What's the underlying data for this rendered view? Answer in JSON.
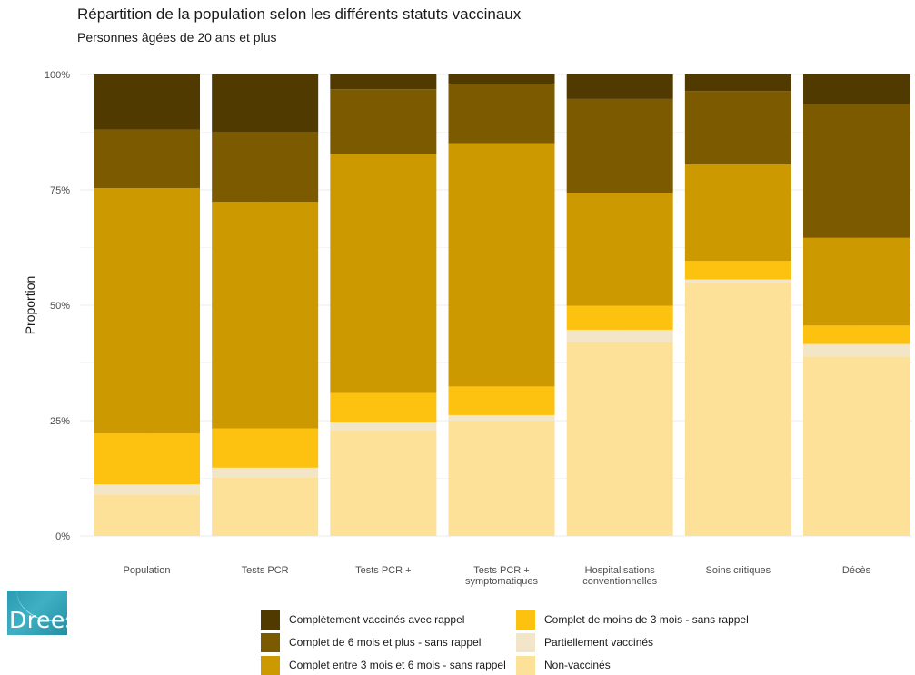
{
  "title": "Répartition de la population selon les différents statuts vaccinaux",
  "subtitle": "Personnes âgées de 20 ans et plus",
  "logo_text": "Drees",
  "colors": {
    "background": "#ffffff",
    "grid": "#ebebeb",
    "text": "#1a1a1a",
    "axis_text": "#4d4d4d",
    "logo": "#2a9bb0"
  },
  "chart_data": {
    "type": "bar",
    "stacked": true,
    "ylabel": "Proportion",
    "xlabel": "",
    "ylim": [
      0,
      1
    ],
    "y_ticks": [
      {
        "value": 0,
        "label": "0%"
      },
      {
        "value": 0.25,
        "label": "25%"
      },
      {
        "value": 0.5,
        "label": "50%"
      },
      {
        "value": 0.75,
        "label": "75%"
      },
      {
        "value": 1,
        "label": "100%"
      }
    ],
    "grid": true,
    "legend_position": "bottom",
    "categories": [
      [
        "Population"
      ],
      [
        "Tests PCR"
      ],
      [
        "Tests PCR +"
      ],
      [
        "Tests PCR +",
        "symptomatiques"
      ],
      [
        "Hospitalisations",
        "conventionnelles"
      ],
      [
        "Soins critiques"
      ],
      [
        "Décès"
      ]
    ],
    "series": [
      {
        "name": "Non-vaccinés",
        "color": "#fde199",
        "values": [
          0.09,
          0.126,
          0.23,
          0.25,
          0.42,
          0.548,
          0.389
        ]
      },
      {
        "name": "Partiellement vaccinés",
        "color": "#f2e5c8",
        "values": [
          0.022,
          0.022,
          0.016,
          0.012,
          0.027,
          0.008,
          0.027
        ]
      },
      {
        "name": "Complet de moins de 3 mois - sans rappel",
        "color": "#fdc10f",
        "values": [
          0.11,
          0.085,
          0.064,
          0.062,
          0.052,
          0.04,
          0.04
        ]
      },
      {
        "name": "Complet entre 3 mois et 6 mois - sans rappel",
        "color": "#cc9900",
        "values": [
          0.532,
          0.491,
          0.518,
          0.527,
          0.245,
          0.209,
          0.19
        ]
      },
      {
        "name": "Complet de 6 mois et plus - sans rappel",
        "color": "#7c5a00",
        "values": [
          0.127,
          0.152,
          0.14,
          0.129,
          0.203,
          0.159,
          0.29
        ]
      },
      {
        "name": "Complètement vaccinés avec rappel",
        "color": "#503a00",
        "values": [
          0.119,
          0.124,
          0.032,
          0.02,
          0.053,
          0.036,
          0.064
        ]
      }
    ]
  },
  "legend": {
    "items": [
      {
        "label": "Complètement vaccinés avec rappel",
        "color": "#503a00"
      },
      {
        "label": "Complet de 6 mois et plus - sans rappel",
        "color": "#7c5a00"
      },
      {
        "label": "Complet entre 3 mois et 6 mois - sans rappel",
        "color": "#cc9900"
      },
      {
        "label": "Complet de moins de 3 mois - sans rappel",
        "color": "#fdc10f"
      },
      {
        "label": "Partiellement vaccinés",
        "color": "#f2e5c8"
      },
      {
        "label": "Non-vaccinés",
        "color": "#fde199"
      }
    ]
  }
}
